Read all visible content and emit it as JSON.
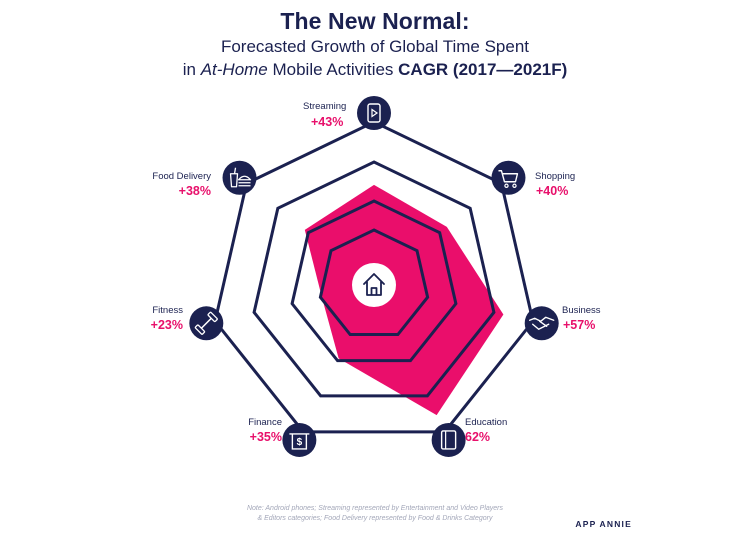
{
  "header": {
    "title": "The New Normal:",
    "subtitle_line1": "Forecasted Growth of Global Time Spent",
    "subtitle_pre": "in ",
    "subtitle_italic": "At-Home",
    "subtitle_mid": " Mobile Activities ",
    "subtitle_bold": "CAGR (2017—2021F)"
  },
  "chart_data": {
    "type": "radar",
    "title": "The New Normal: Forecasted Growth of Global Time Spent in At-Home Mobile Activities CAGR (2017—2021F)",
    "axes": [
      {
        "name": "Streaming",
        "label": "+43%",
        "value": 43,
        "icon": "tablet-play-icon"
      },
      {
        "name": "Shopping",
        "label": "+40%",
        "value": 40,
        "icon": "shopping-cart-icon"
      },
      {
        "name": "Business",
        "label": "+57%",
        "value": 57,
        "icon": "handshake-icon"
      },
      {
        "name": "Education",
        "label": "62%",
        "value": 62,
        "icon": "book-icon"
      },
      {
        "name": "Finance",
        "label": "+35%",
        "value": 35,
        "icon": "money-atm-icon"
      },
      {
        "name": "Fitness",
        "label": "+23%",
        "value": 23,
        "icon": "dumbbell-icon"
      },
      {
        "name": "Food Delivery",
        "label": "+38%",
        "value": 38,
        "icon": "fast-food-icon"
      }
    ],
    "range": [
      0,
      70
    ],
    "gridlines": 4,
    "center_icon": "home-icon",
    "fill_color": "#ea0e6b",
    "grid_color": "#1b2150"
  },
  "footer": {
    "note_line1": "Note: Android phones; Streaming represented by Entertainment and Video Players",
    "note_line2": "& Editors categories; Food Delivery represented by Food & Drinks Category",
    "brand": "APP ANNIE"
  }
}
